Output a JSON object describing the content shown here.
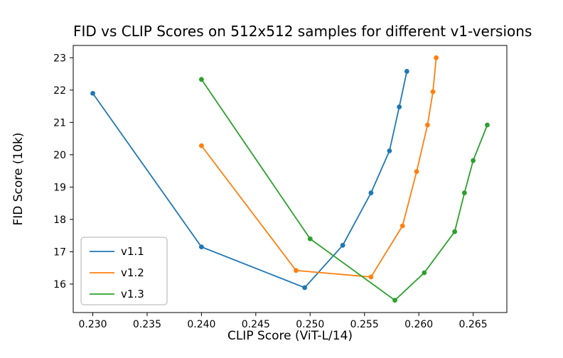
{
  "chart_data": {
    "type": "line",
    "title": "FID vs CLIP Scores on 512x512 samples for different v1-versions",
    "xlabel": "CLIP Score (ViT-L/14)",
    "ylabel": "FID Score (10k)",
    "xlim": [
      0.2282,
      0.2681
    ],
    "ylim": [
      15.12,
      23.38
    ],
    "xticks": [
      0.23,
      0.235,
      0.24,
      0.245,
      0.25,
      0.255,
      0.26,
      0.265
    ],
    "xtick_labels": [
      "0.230",
      "0.235",
      "0.240",
      "0.245",
      "0.250",
      "0.255",
      "0.260",
      "0.265"
    ],
    "yticks": [
      16,
      17,
      18,
      19,
      20,
      21,
      22,
      23
    ],
    "ytick_labels": [
      "16",
      "17",
      "18",
      "19",
      "20",
      "21",
      "22",
      "23"
    ],
    "grid": false,
    "legend_position": "lower left",
    "marker": "circle",
    "series": [
      {
        "name": "v1.1",
        "color": "#1f77b4",
        "x": [
          0.23,
          0.24,
          0.2495,
          0.253,
          0.2556,
          0.2573,
          0.2582,
          0.2589
        ],
        "y": [
          21.9,
          17.15,
          15.89,
          17.2,
          18.82,
          20.12,
          21.48,
          22.58
        ]
      },
      {
        "name": "v1.2",
        "color": "#ff7f0e",
        "x": [
          0.24,
          0.2487,
          0.2556,
          0.2585,
          0.2598,
          0.2608,
          0.2613,
          0.2616
        ],
        "y": [
          20.28,
          16.42,
          16.22,
          17.8,
          19.48,
          20.92,
          21.95,
          23.0
        ]
      },
      {
        "name": "v1.3",
        "color": "#2ca02c",
        "x": [
          0.24,
          0.25,
          0.2578,
          0.2605,
          0.2633,
          0.2642,
          0.265,
          0.2663
        ],
        "y": [
          22.33,
          17.4,
          15.5,
          16.35,
          17.62,
          18.82,
          19.82,
          20.92
        ]
      }
    ]
  }
}
